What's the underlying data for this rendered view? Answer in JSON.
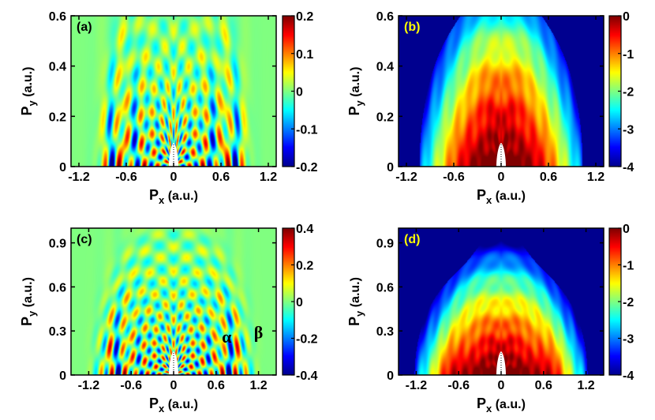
{
  "colors": {
    "colorscale": [
      "#00008f",
      "#0000ff",
      "#0080ff",
      "#00ffff",
      "#80ff80",
      "#ffff00",
      "#ff8000",
      "#ff0000",
      "#800000"
    ],
    "panel_a_background": "#80ff80",
    "panel_b_background": "#00008f",
    "tag_dark": "#000000",
    "tag_light": "#ffff00"
  },
  "chart_data": [
    {
      "type": "heatmap",
      "panel": "(a)",
      "xlabel_main": "P",
      "xlabel_sub": "x",
      "xlabel_unit": " (a.u.)",
      "ylabel_main": "P",
      "ylabel_sub": "y",
      "ylabel_unit": " (a.u.)",
      "xlim": [
        -1.3,
        1.3
      ],
      "ylim": [
        0,
        0.6
      ],
      "xticks": [
        "-1.2",
        "-0.6",
        "0",
        "0.6",
        "1.2"
      ],
      "xtick_values": [
        -1.2,
        -0.6,
        0,
        0.6,
        1.2
      ],
      "yticks": [
        "0",
        "0.2",
        "0.4",
        "0.6"
      ],
      "ytick_values": [
        0,
        0.2,
        0.4,
        0.6
      ],
      "colorbar_ticks": [
        "0.2",
        "0.1",
        "0",
        "-0.1",
        "-0.2"
      ],
      "colorbar_tick_values": [
        0.2,
        0.1,
        0,
        -0.1,
        -0.2
      ],
      "colorbar_range": [
        -0.2,
        0.2
      ],
      "field": "signed",
      "maxp": 1.1,
      "annotations": []
    },
    {
      "type": "heatmap",
      "panel": "(b)",
      "xlabel_main": "P",
      "xlabel_sub": "x",
      "xlabel_unit": " (a.u.)",
      "ylabel_main": "P",
      "ylabel_sub": "y",
      "ylabel_unit": " (a.u.)",
      "xlim": [
        -1.3,
        1.3
      ],
      "ylim": [
        0,
        0.6
      ],
      "xticks": [
        "-1.2",
        "-0.6",
        "0",
        "0.6",
        "1.2"
      ],
      "xtick_values": [
        -1.2,
        -0.6,
        0,
        0.6,
        1.2
      ],
      "yticks": [
        "0",
        "0.2",
        "0.4",
        "0.6"
      ],
      "ytick_values": [
        0,
        0.2,
        0.4,
        0.6
      ],
      "colorbar_ticks": [
        "0",
        "-1",
        "-2",
        "-3",
        "-4"
      ],
      "colorbar_tick_values": [
        0,
        -1,
        -2,
        -3,
        -4
      ],
      "colorbar_range": [
        -4,
        0
      ],
      "field": "log",
      "maxp": 1.1,
      "annotations": []
    },
    {
      "type": "heatmap",
      "panel": "(c)",
      "xlabel_main": "P",
      "xlabel_sub": "x",
      "xlabel_unit": " (a.u.)",
      "ylabel_main": "P",
      "ylabel_sub": "y",
      "ylabel_unit": " (a.u.)",
      "xlim": [
        -1.45,
        1.45
      ],
      "ylim": [
        0,
        1.0
      ],
      "xticks": [
        "-1.2",
        "-0.6",
        "0",
        "0.6",
        "1.2"
      ],
      "xtick_values": [
        -1.2,
        -0.6,
        0,
        0.6,
        1.2
      ],
      "yticks": [
        "0",
        "0.3",
        "0.6",
        "0.9"
      ],
      "ytick_values": [
        0,
        0.3,
        0.6,
        0.9
      ],
      "colorbar_ticks": [
        "0.4",
        "0.2",
        "0",
        "-0.2",
        "-0.4"
      ],
      "colorbar_tick_values": [
        0.4,
        0.2,
        0,
        -0.2,
        -0.4
      ],
      "colorbar_range": [
        -0.4,
        0.4
      ],
      "field": "signed",
      "maxp": 1.3,
      "annotations": [
        {
          "text": "α",
          "x": 0.75,
          "y": 0.22
        },
        {
          "text": "β",
          "x": 1.2,
          "y": 0.25
        }
      ]
    },
    {
      "type": "heatmap",
      "panel": "(d)",
      "xlabel_main": "P",
      "xlabel_sub": "x",
      "xlabel_unit": " (a.u.)",
      "ylabel_main": "P",
      "ylabel_sub": "y",
      "ylabel_unit": " (a.u.)",
      "xlim": [
        -1.45,
        1.45
      ],
      "ylim": [
        0,
        1.0
      ],
      "xticks": [
        "-1.2",
        "-0.6",
        "0",
        "0.6",
        "1.2"
      ],
      "xtick_values": [
        -1.2,
        -0.6,
        0,
        0.6,
        1.2
      ],
      "yticks": [
        "0",
        "0.3",
        "0.6",
        "0.9"
      ],
      "ytick_values": [
        0,
        0.3,
        0.6,
        0.9
      ],
      "colorbar_ticks": [
        "0",
        "-1",
        "-2",
        "-3",
        "-4"
      ],
      "colorbar_tick_values": [
        0,
        -1,
        -2,
        -3,
        -4
      ],
      "colorbar_range": [
        -4,
        0
      ],
      "field": "log",
      "maxp": 1.3,
      "annotations": []
    }
  ]
}
